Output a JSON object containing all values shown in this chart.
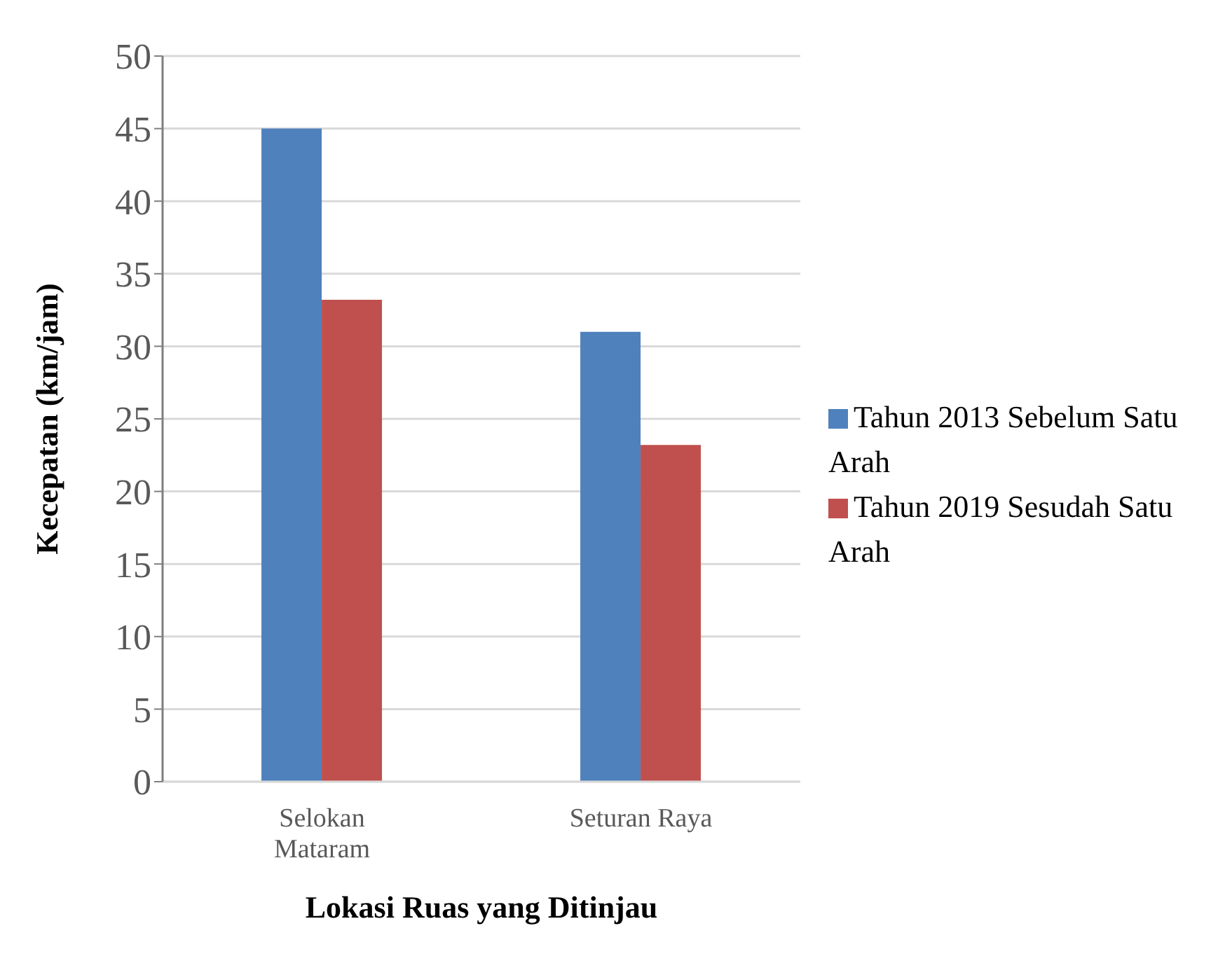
{
  "chart_data": {
    "type": "bar",
    "xlabel": "Lokasi Ruas yang  Ditinjau",
    "ylabel": "Kecepatan  (km/jam)",
    "categories": [
      "Selokan Mataram",
      "Seturan Raya"
    ],
    "series": [
      {
        "name": "Tahun 2013 Sebelum Satu Arah",
        "color": "#4f81bd",
        "values": [
          45,
          31
        ]
      },
      {
        "name": "Tahun 2019 Sesudah Satu Arah",
        "color": "#c0504d",
        "values": [
          33.2,
          23.2
        ]
      }
    ],
    "ylim": [
      0,
      50
    ],
    "yticks": [
      0,
      5,
      10,
      15,
      20,
      25,
      30,
      35,
      40,
      45,
      50
    ],
    "grid": "y",
    "legend": "right"
  }
}
